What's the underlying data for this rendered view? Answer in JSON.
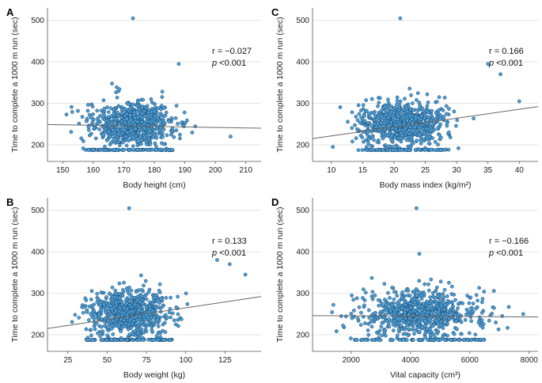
{
  "chart_data": [
    {
      "panel": "A",
      "type": "scatter",
      "xlabel": "Body height (cm)",
      "ylabel": "Time to complete a 1000 m run (sec)",
      "xlim": [
        145,
        215
      ],
      "ylim": [
        160,
        530
      ],
      "xticks": [
        150,
        160,
        170,
        180,
        190,
        200,
        210
      ],
      "yticks": [
        200,
        300,
        400,
        500
      ],
      "annotation": {
        "r": "r = −0.027",
        "p_symbol": "p",
        "p_value": "<0.001"
      },
      "fit_line": {
        "x": [
          145,
          215
        ],
        "y": [
          249,
          240
        ]
      },
      "cloud": {
        "x_mean": 173,
        "x_sd": 7,
        "y_mean": 250,
        "y_sd": 28,
        "n": 700,
        "floor": 187
      },
      "outliers": [
        [
          173,
          505
        ],
        [
          205,
          220
        ],
        [
          188,
          395
        ]
      ]
    },
    {
      "panel": "C",
      "type": "scatter",
      "xlabel": "Body mass index (kg/m²)",
      "ylabel": "Time to complete a 1000 m run (sec)",
      "xlim": [
        7,
        43
      ],
      "ylim": [
        160,
        530
      ],
      "xticks": [
        10,
        15,
        20,
        25,
        30,
        35,
        40
      ],
      "yticks": [
        200,
        300,
        400,
        500
      ],
      "annotation": {
        "r": "r = 0.166",
        "p_symbol": "p",
        "p_value": "<0.001"
      },
      "fit_line": {
        "x": [
          7,
          43
        ],
        "y": [
          215,
          292
        ]
      },
      "cloud": {
        "x_mean": 21.5,
        "x_sd": 3.5,
        "y_mean": 252,
        "y_sd": 27,
        "n": 750,
        "floor": 187
      },
      "outliers": [
        [
          21,
          505
        ],
        [
          35,
          395
        ],
        [
          37,
          370
        ],
        [
          40,
          305
        ]
      ]
    },
    {
      "panel": "B",
      "type": "scatter",
      "xlabel": "Body weight (kg)",
      "ylabel": "Time to complete a 1000 m run (sec)",
      "xlim": [
        12,
        148
      ],
      "ylim": [
        160,
        530
      ],
      "xticks": [
        25,
        50,
        75,
        100,
        125
      ],
      "yticks": [
        200,
        300,
        400,
        500
      ],
      "annotation": {
        "r": "r = 0.133",
        "p_symbol": "p",
        "p_value": "<0.001"
      },
      "fit_line": {
        "x": [
          12,
          148
        ],
        "y": [
          215,
          292
        ]
      },
      "cloud": {
        "x_mean": 64,
        "x_sd": 13,
        "y_mean": 252,
        "y_sd": 28,
        "n": 700,
        "floor": 187
      },
      "outliers": [
        [
          64,
          505
        ],
        [
          120,
          380
        ],
        [
          128,
          370
        ],
        [
          138,
          345
        ]
      ]
    },
    {
      "panel": "D",
      "type": "scatter",
      "xlabel": "Vital capacity (cm³)",
      "ylabel": "Time to complete a 1000 m run (sec)",
      "xlim": [
        700,
        8300
      ],
      "ylim": [
        160,
        530
      ],
      "xticks": [
        2000,
        4000,
        6000,
        8000
      ],
      "yticks": [
        200,
        300,
        400,
        500
      ],
      "annotation": {
        "r": "r = −0.166",
        "p_symbol": "p",
        "p_value": "<0.001"
      },
      "fit_line": {
        "x": [
          700,
          8300
        ],
        "y": [
          246,
          243
        ]
      },
      "cloud": {
        "x_mean": 4300,
        "x_sd": 1050,
        "y_mean": 250,
        "y_sd": 28,
        "n": 700,
        "floor": 187
      },
      "outliers": [
        [
          4200,
          505
        ],
        [
          4300,
          395
        ],
        [
          7800,
          250
        ]
      ]
    }
  ],
  "colors": {
    "point_fill": "#4a9fd6",
    "point_stroke": "#1c3f63",
    "grid": "#dcdcdc",
    "axis": "#555555",
    "fit_line": "#666666"
  }
}
